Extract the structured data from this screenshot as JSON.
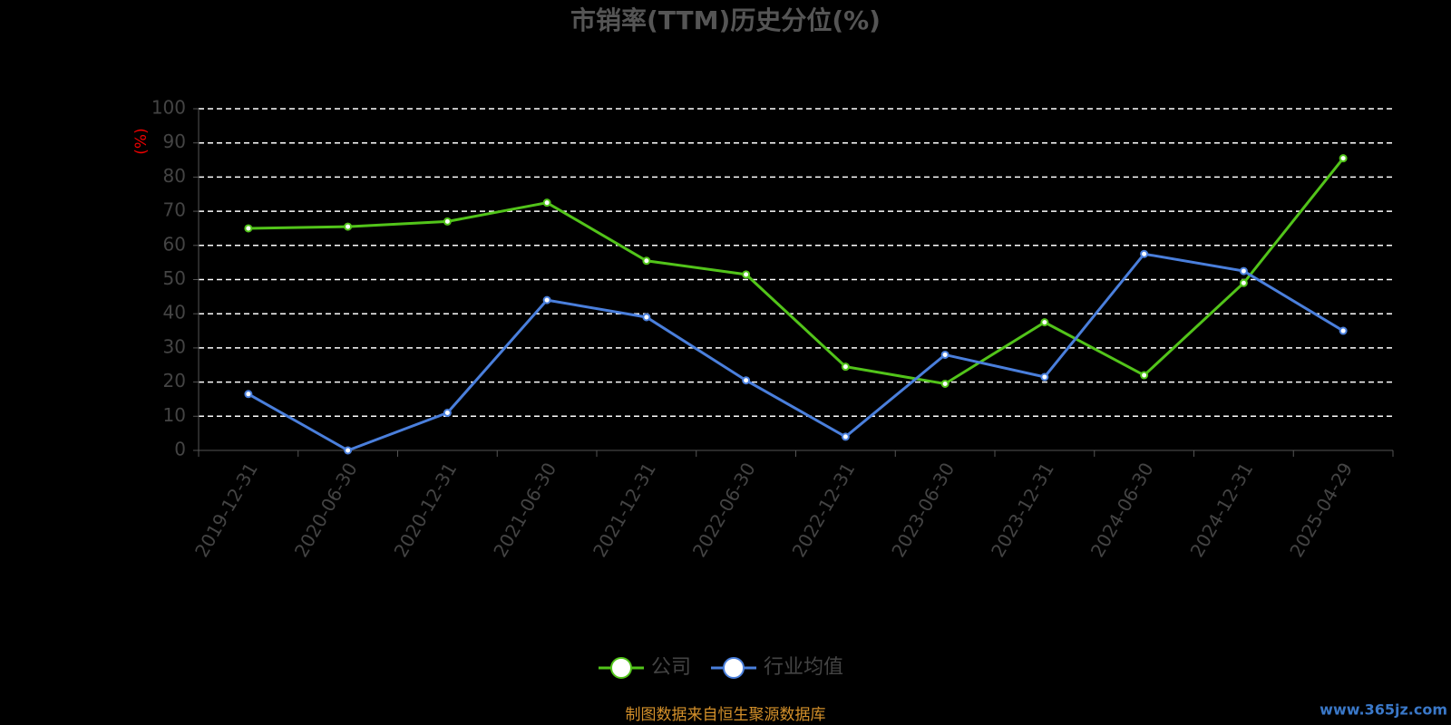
{
  "chart_data": {
    "type": "line",
    "title": "市销率(TTM)历史分位(%)",
    "y_label": "(%)",
    "categories": [
      "2019-12-31",
      "2020-06-30",
      "2020-12-31",
      "2021-06-30",
      "2021-12-31",
      "2022-06-30",
      "2022-12-31",
      "2023-06-30",
      "2023-12-31",
      "2024-06-30",
      "2024-12-31",
      "2025-04-29"
    ],
    "series": [
      {
        "name": "公司",
        "color": "#52c41a",
        "values": [
          65,
          65.5,
          67,
          72.5,
          55.5,
          51.5,
          24.5,
          19.5,
          37.5,
          22,
          49,
          85.5
        ]
      },
      {
        "name": "行业均值",
        "color": "#4a7fdc",
        "values": [
          16.5,
          0,
          11,
          44,
          39,
          20.5,
          4,
          28,
          21.5,
          57.5,
          52.5,
          35
        ]
      }
    ],
    "ylim": [
      0,
      100
    ],
    "yticks": [
      0,
      10,
      20,
      30,
      40,
      50,
      60,
      70,
      80,
      90,
      100
    ],
    "grid": true,
    "legend": "bottom",
    "source": "制图数据来自恒生聚源数据库",
    "watermark": "www.365jz.com"
  }
}
